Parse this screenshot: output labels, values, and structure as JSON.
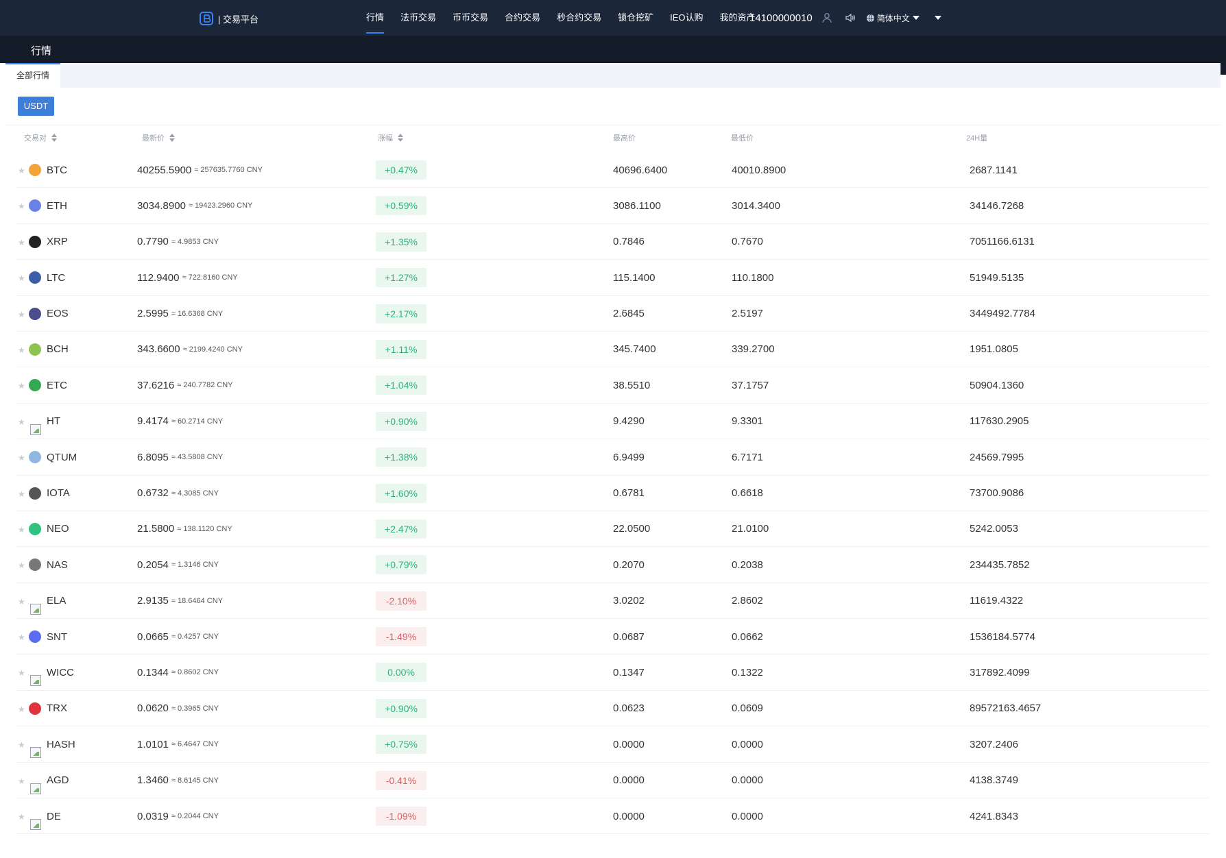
{
  "header": {
    "logo_text": "| 交易平台",
    "nav": [
      "行情",
      "法币交易",
      "币币交易",
      "合约交易",
      "秒合约交易",
      "锁仓挖矿",
      "IEO认购",
      "我的资产"
    ],
    "active_nav": 0,
    "account_id": "14100000010",
    "language": "简体中文"
  },
  "subheader": {
    "title": "行情"
  },
  "tabs": [
    "全部行情"
  ],
  "filter": "USDT",
  "columns": {
    "pair": "交易对",
    "latest": "最新价",
    "change": "涨幅",
    "high": "最高价",
    "low": "最低价",
    "volume": "24H量"
  },
  "rows": [
    {
      "symbol": "BTC",
      "icon": "bitcoin-icon",
      "icon_color": "#f2a33a",
      "price": "40255.5900",
      "cny": "≈ 257635.7760 CNY",
      "change": "+0.47%",
      "dir": "up",
      "high": "40696.6400",
      "low": "40010.8900",
      "vol": "2687.1141"
    },
    {
      "symbol": "ETH",
      "icon": "ethereum-icon",
      "icon_color": "#6a82e8",
      "price": "3034.8900",
      "cny": "≈ 19423.2960 CNY",
      "change": "+0.59%",
      "dir": "up",
      "high": "3086.1100",
      "low": "3014.3400",
      "vol": "34146.7268"
    },
    {
      "symbol": "XRP",
      "icon": "ripple-icon",
      "icon_color": "#222222",
      "price": "0.7790",
      "cny": "≈ 4.9853 CNY",
      "change": "+1.35%",
      "dir": "up",
      "high": "0.7846",
      "low": "0.7670",
      "vol": "7051166.6131"
    },
    {
      "symbol": "LTC",
      "icon": "litecoin-icon",
      "icon_color": "#3a5ea8",
      "price": "112.9400",
      "cny": "≈ 722.8160 CNY",
      "change": "+1.27%",
      "dir": "up",
      "high": "115.1400",
      "low": "110.1800",
      "vol": "51949.5135"
    },
    {
      "symbol": "EOS",
      "icon": "eos-icon",
      "icon_color": "#4a4e8a",
      "price": "2.5995",
      "cny": "≈ 16.6368 CNY",
      "change": "+2.17%",
      "dir": "up",
      "high": "2.6845",
      "low": "2.5197",
      "vol": "3449492.7784"
    },
    {
      "symbol": "BCH",
      "icon": "bitcoin-cash-icon",
      "icon_color": "#8dc351",
      "price": "343.6600",
      "cny": "≈ 2199.4240 CNY",
      "change": "+1.11%",
      "dir": "up",
      "high": "345.7400",
      "low": "339.2700",
      "vol": "1951.0805"
    },
    {
      "symbol": "ETC",
      "icon": "ethereum-classic-icon",
      "icon_color": "#34a853",
      "price": "37.6216",
      "cny": "≈ 240.7782 CNY",
      "change": "+1.04%",
      "dir": "up",
      "high": "38.5510",
      "low": "37.1757",
      "vol": "50904.1360"
    },
    {
      "symbol": "HT",
      "icon": "broken-image-icon",
      "icon_color": "",
      "price": "9.4174",
      "cny": "≈ 60.2714 CNY",
      "change": "+0.90%",
      "dir": "up",
      "high": "9.4290",
      "low": "9.3301",
      "vol": "117630.2905"
    },
    {
      "symbol": "QTUM",
      "icon": "qtum-icon",
      "icon_color": "#8fb7e0",
      "price": "6.8095",
      "cny": "≈ 43.5808 CNY",
      "change": "+1.38%",
      "dir": "up",
      "high": "6.9499",
      "low": "6.7171",
      "vol": "24569.7995"
    },
    {
      "symbol": "IOTA",
      "icon": "iota-icon",
      "icon_color": "#555555",
      "price": "0.6732",
      "cny": "≈ 4.3085 CNY",
      "change": "+1.60%",
      "dir": "up",
      "high": "0.6781",
      "low": "0.6618",
      "vol": "73700.9086"
    },
    {
      "symbol": "NEO",
      "icon": "neo-icon",
      "icon_color": "#2ec27e",
      "price": "21.5800",
      "cny": "≈ 138.1120 CNY",
      "change": "+2.47%",
      "dir": "up",
      "high": "22.0500",
      "low": "21.0100",
      "vol": "5242.0053"
    },
    {
      "symbol": "NAS",
      "icon": "nebulas-icon",
      "icon_color": "#777777",
      "price": "0.2054",
      "cny": "≈ 1.3146 CNY",
      "change": "+0.79%",
      "dir": "up",
      "high": "0.2070",
      "low": "0.2038",
      "vol": "234435.7852"
    },
    {
      "symbol": "ELA",
      "icon": "broken-image-icon",
      "icon_color": "",
      "price": "2.9135",
      "cny": "≈ 18.6464 CNY",
      "change": "-2.10%",
      "dir": "down",
      "high": "3.0202",
      "low": "2.8602",
      "vol": "11619.4322"
    },
    {
      "symbol": "SNT",
      "icon": "status-icon",
      "icon_color": "#5b6dee",
      "price": "0.0665",
      "cny": "≈ 0.4257 CNY",
      "change": "-1.49%",
      "dir": "down",
      "high": "0.0687",
      "low": "0.0662",
      "vol": "1536184.5774"
    },
    {
      "symbol": "WICC",
      "icon": "broken-image-icon",
      "icon_color": "",
      "price": "0.1344",
      "cny": "≈ 0.8602 CNY",
      "change": "0.00%",
      "dir": "up",
      "high": "0.1347",
      "low": "0.1322",
      "vol": "317892.4099"
    },
    {
      "symbol": "TRX",
      "icon": "tron-icon",
      "icon_color": "#e0333a",
      "price": "0.0620",
      "cny": "≈ 0.3965 CNY",
      "change": "+0.90%",
      "dir": "up",
      "high": "0.0623",
      "low": "0.0609",
      "vol": "89572163.4657"
    },
    {
      "symbol": "HASH",
      "icon": "broken-image-icon",
      "icon_color": "",
      "price": "1.0101",
      "cny": "≈ 6.4647 CNY",
      "change": "+0.75%",
      "dir": "up",
      "high": "0.0000",
      "low": "0.0000",
      "vol": "3207.2406"
    },
    {
      "symbol": "AGD",
      "icon": "broken-image-icon",
      "icon_color": "",
      "price": "1.3460",
      "cny": "≈ 8.6145 CNY",
      "change": "-0.41%",
      "dir": "down",
      "high": "0.0000",
      "low": "0.0000",
      "vol": "4138.3749"
    },
    {
      "symbol": "DE",
      "icon": "broken-image-icon",
      "icon_color": "",
      "price": "0.0319",
      "cny": "≈ 0.2044 CNY",
      "change": "-1.09%",
      "dir": "down",
      "high": "0.0000",
      "low": "0.0000",
      "vol": "4241.8343"
    }
  ],
  "colors": {
    "topbar": "#1c2639",
    "subbar": "#141c2a",
    "accent": "#3b7fdb",
    "up": "#2fb27a",
    "up_bg": "#e9f7ef",
    "down": "#e15b5b",
    "down_bg": "#fbeeee"
  }
}
